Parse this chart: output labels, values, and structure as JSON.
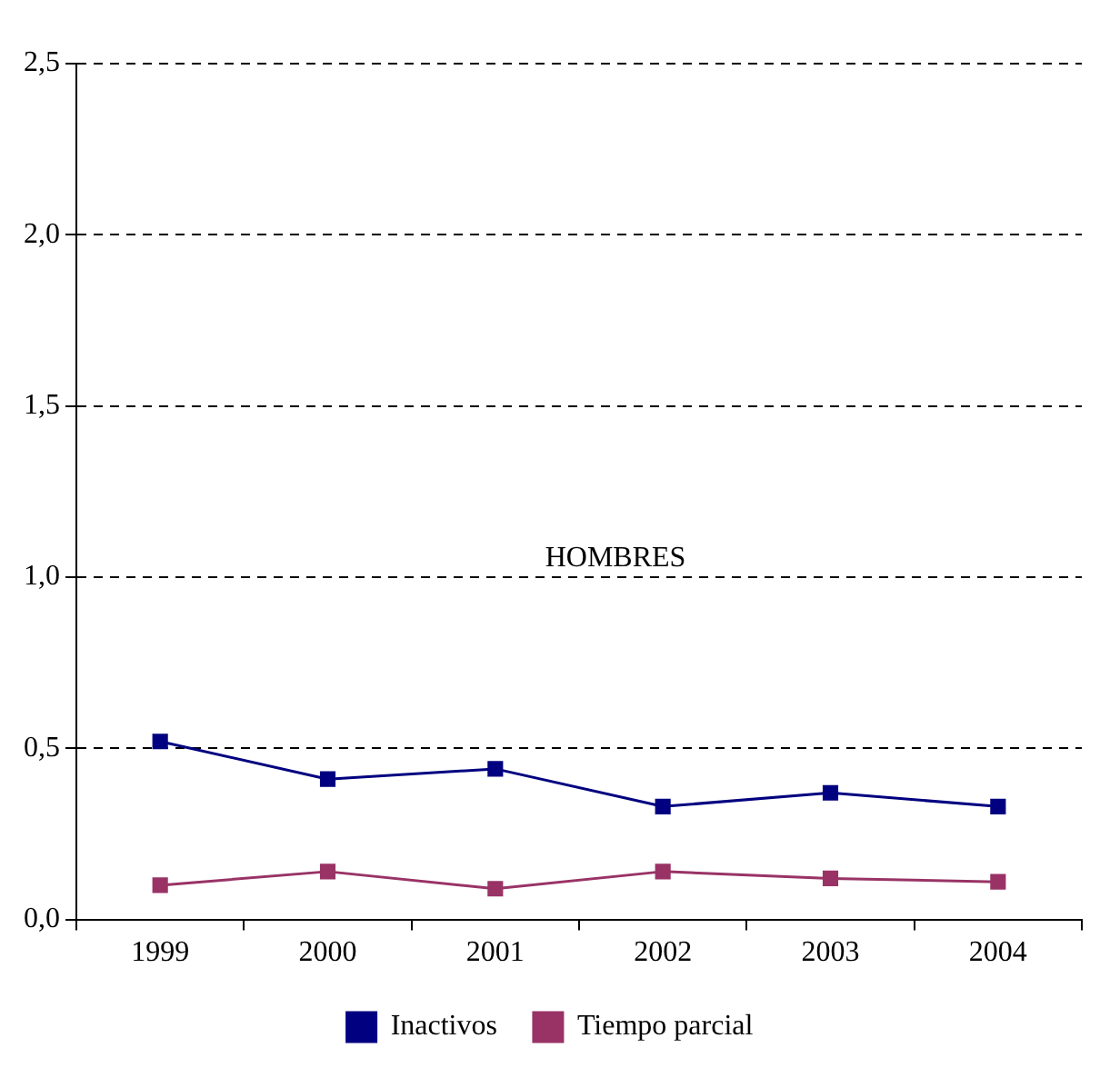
{
  "chart_data": {
    "type": "line",
    "categories": [
      "1999",
      "2000",
      "2001",
      "2002",
      "2003",
      "2004"
    ],
    "series": [
      {
        "name": "Inactivos",
        "color": "#000080",
        "values": [
          0.52,
          0.41,
          0.44,
          0.33,
          0.37,
          0.33
        ]
      },
      {
        "name": "Tiempo parcial",
        "color": "#993366",
        "values": [
          0.1,
          0.14,
          0.09,
          0.14,
          0.12,
          0.11
        ]
      }
    ],
    "ylim": [
      0,
      2.5
    ],
    "yticks": [
      {
        "value": 0,
        "label": "0,0"
      },
      {
        "value": 0.5,
        "label": "0,5"
      },
      {
        "value": 1,
        "label": "1,0"
      },
      {
        "value": 1.5,
        "label": "1,5"
      },
      {
        "value": 2,
        "label": "2,0"
      },
      {
        "value": 2.5,
        "label": "2,5"
      }
    ],
    "grid": "y",
    "legend": "bottom",
    "marker": "square",
    "line_style": "solid",
    "annotations": [
      "HOMBRES"
    ]
  }
}
